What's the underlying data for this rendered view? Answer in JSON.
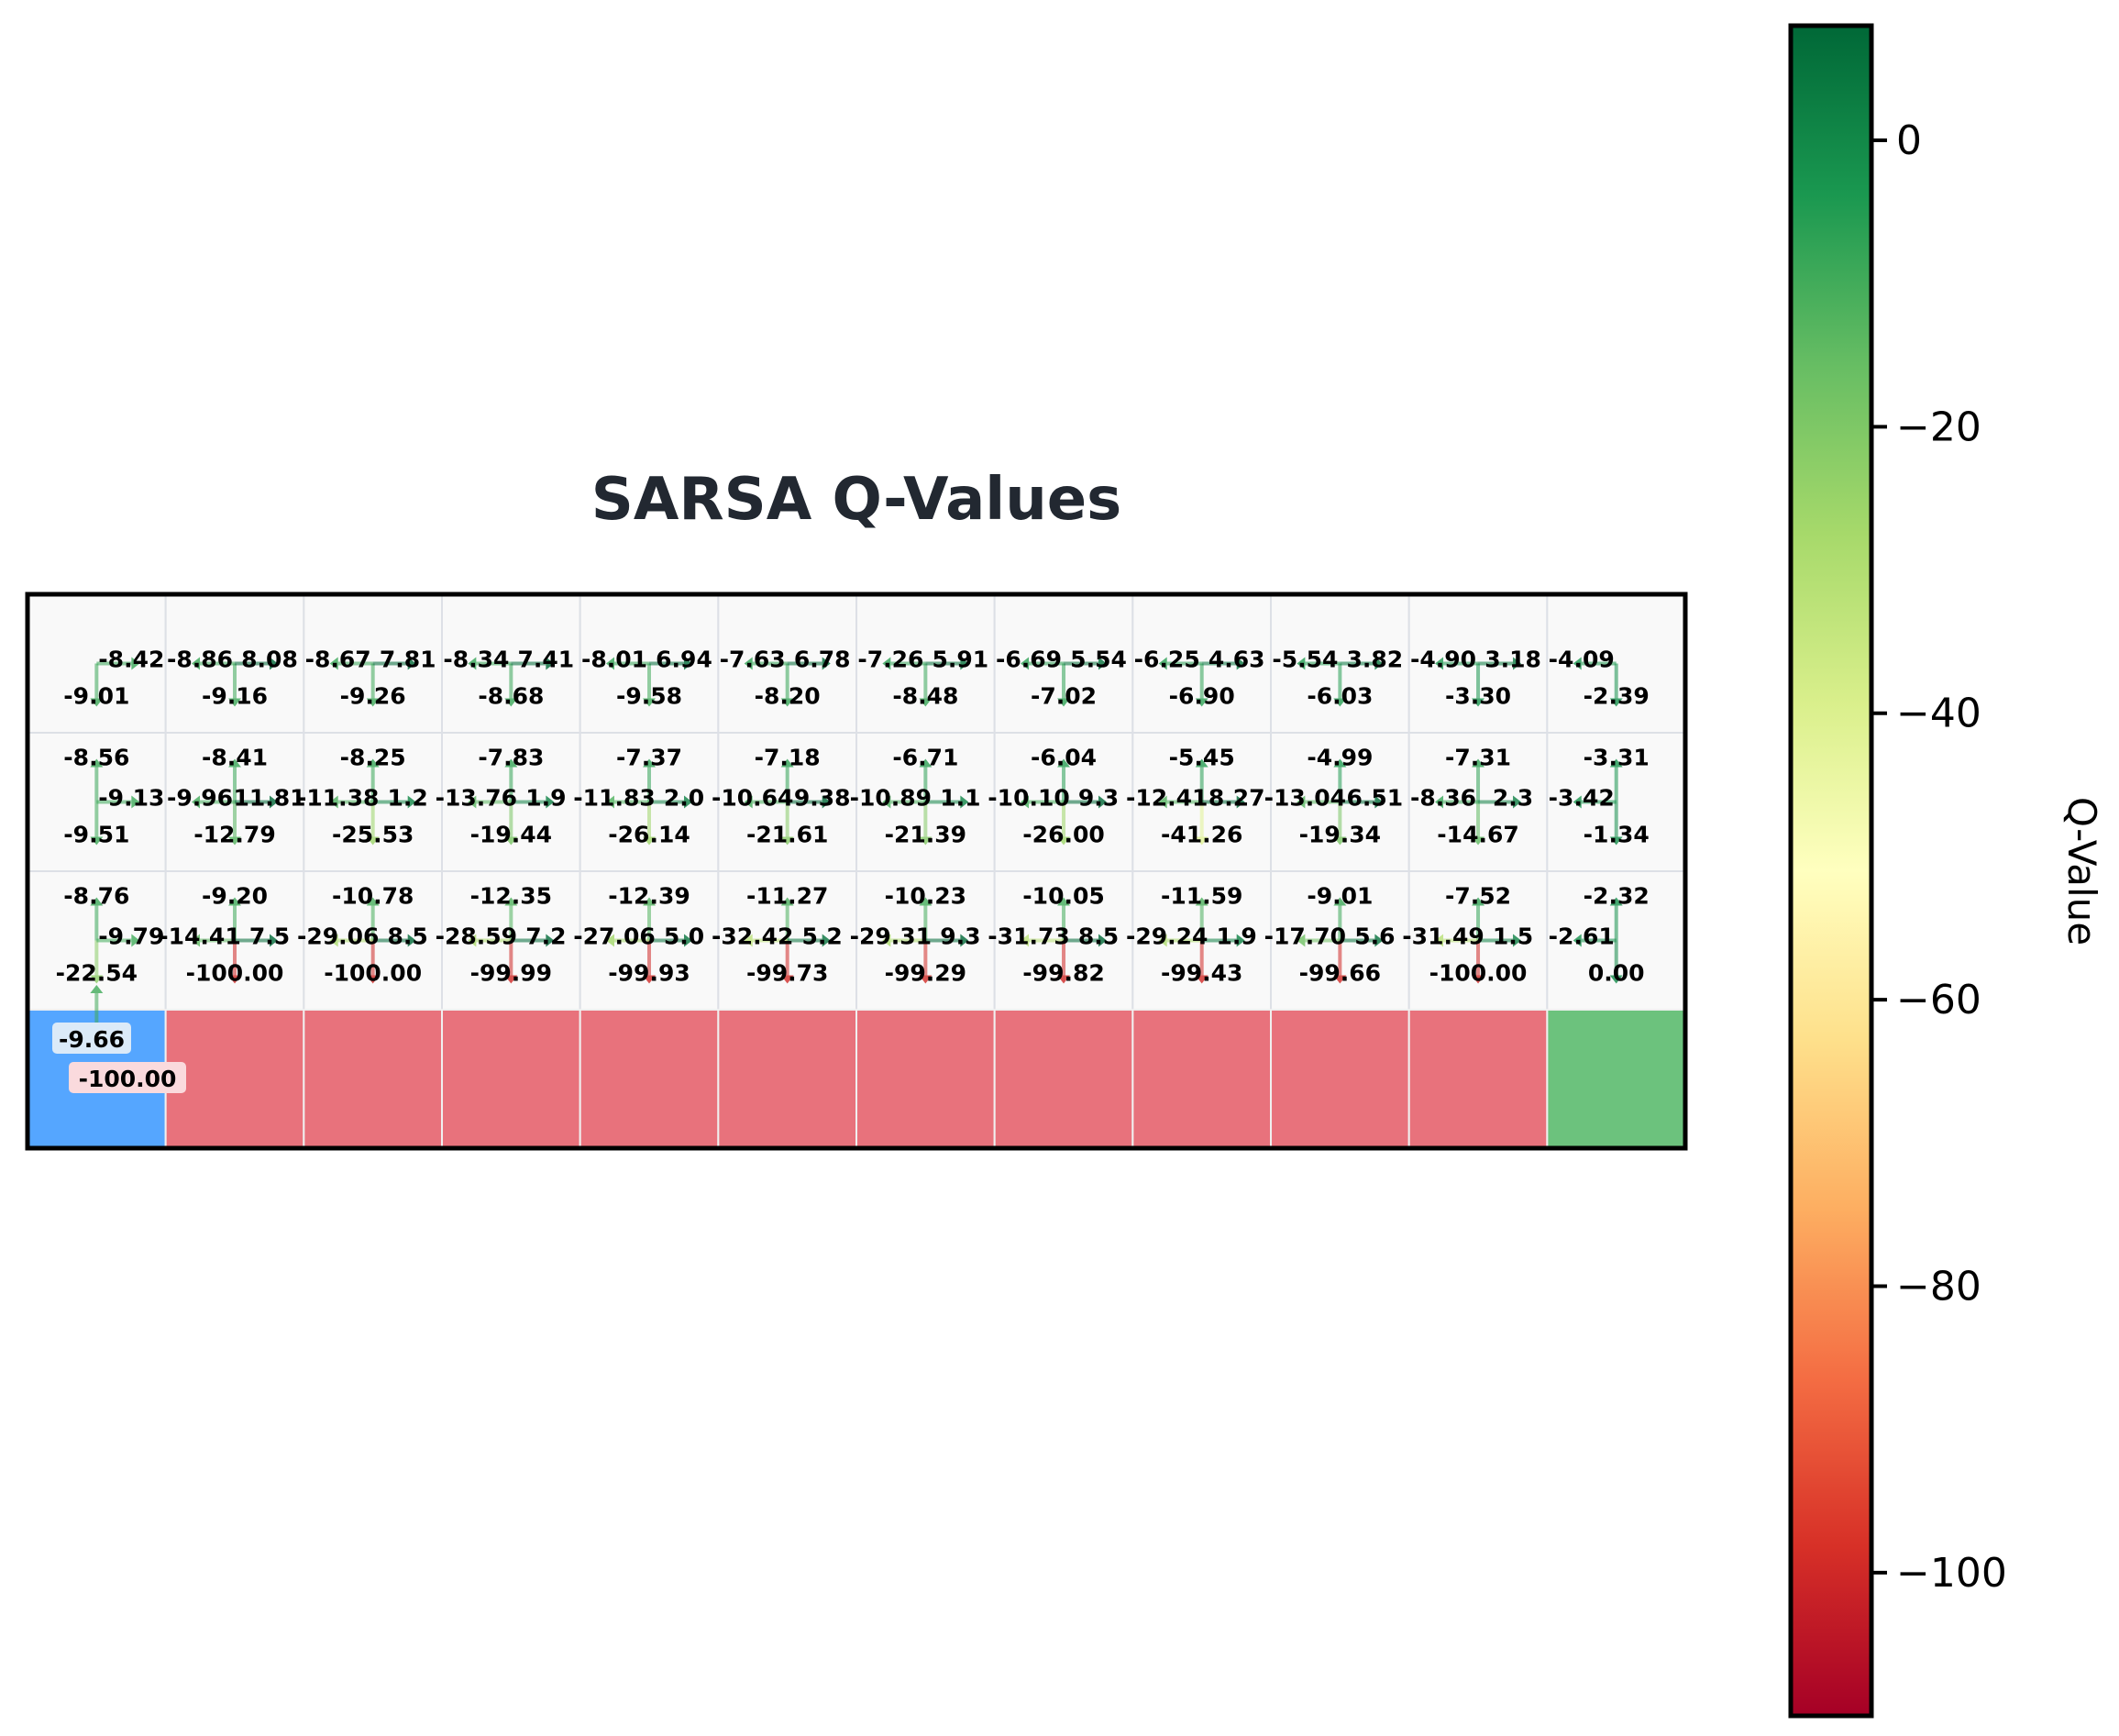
{
  "chart_data": {
    "type": "heatmap",
    "title": "SARSA Q-Values",
    "grid": {
      "rows": 4,
      "cols": 12
    },
    "q_values": [
      {
        "row": 0,
        "col": 0,
        "up": "",
        "down": "-9.01",
        "left": "",
        "right": "-8.42"
      },
      {
        "row": 0,
        "col": 1,
        "up": "",
        "down": "-9.16",
        "left": "-8.86",
        "right": "8.08"
      },
      {
        "row": 0,
        "col": 2,
        "up": "",
        "down": "-9.26",
        "left": "-8.67",
        "right": "7.81"
      },
      {
        "row": 0,
        "col": 3,
        "up": "",
        "down": "-8.68",
        "left": "-8.34",
        "right": "7.41"
      },
      {
        "row": 0,
        "col": 4,
        "up": "",
        "down": "-9.58",
        "left": "-8.01",
        "right": "6.94"
      },
      {
        "row": 0,
        "col": 5,
        "up": "",
        "down": "-8.20",
        "left": "-7.63",
        "right": "6.78"
      },
      {
        "row": 0,
        "col": 6,
        "up": "",
        "down": "-8.48",
        "left": "-7.26",
        "right": "5.91"
      },
      {
        "row": 0,
        "col": 7,
        "up": "",
        "down": "-7.02",
        "left": "-6.69",
        "right": "5.54"
      },
      {
        "row": 0,
        "col": 8,
        "up": "",
        "down": "-6.90",
        "left": "-6.25",
        "right": "4.63"
      },
      {
        "row": 0,
        "col": 9,
        "up": "",
        "down": "-6.03",
        "left": "-5.54",
        "right": "3.82"
      },
      {
        "row": 0,
        "col": 10,
        "up": "",
        "down": "-3.30",
        "left": "-4.90",
        "right": "3.18"
      },
      {
        "row": 0,
        "col": 11,
        "up": "",
        "down": "-2.39",
        "left": "-4.09",
        "right": ""
      },
      {
        "row": 1,
        "col": 0,
        "up": "-8.56",
        "down": "-9.51",
        "left": "",
        "right": "-9.13"
      },
      {
        "row": 1,
        "col": 1,
        "up": "-8.41",
        "down": "-12.79",
        "left": "-9.96",
        "right": "11.81"
      },
      {
        "row": 1,
        "col": 2,
        "up": "-8.25",
        "down": "-25.53",
        "left": "-11.38",
        "right": "1.2"
      },
      {
        "row": 1,
        "col": 3,
        "up": "-7.83",
        "down": "-19.44",
        "left": "-13.76",
        "right": "1.9"
      },
      {
        "row": 1,
        "col": 4,
        "up": "-7.37",
        "down": "-26.14",
        "left": "-11.83",
        "right": "2.0"
      },
      {
        "row": 1,
        "col": 5,
        "up": "-7.18",
        "down": "-21.61",
        "left": "-10.64",
        "right": "9.38"
      },
      {
        "row": 1,
        "col": 6,
        "up": "-6.71",
        "down": "-21.39",
        "left": "-10.89",
        "right": "1.1"
      },
      {
        "row": 1,
        "col": 7,
        "up": "-6.04",
        "down": "-26.00",
        "left": "-10.10",
        "right": "9.3"
      },
      {
        "row": 1,
        "col": 8,
        "up": "-5.45",
        "down": "-41.26",
        "left": "-12.41",
        "right": "8.27"
      },
      {
        "row": 1,
        "col": 9,
        "up": "-4.99",
        "down": "-19.34",
        "left": "-13.04",
        "right": "6.51"
      },
      {
        "row": 1,
        "col": 10,
        "up": "-7.31",
        "down": "-14.67",
        "left": "-8.36",
        "right": "2.3"
      },
      {
        "row": 1,
        "col": 11,
        "up": "-3.31",
        "down": "-1.34",
        "left": "-3.42",
        "right": ""
      },
      {
        "row": 2,
        "col": 0,
        "up": "-8.76",
        "down": "-22.54",
        "left": "",
        "right": "-9.79"
      },
      {
        "row": 2,
        "col": 1,
        "up": "-9.20",
        "down": "-100.00",
        "left": "-14.41",
        "right": "7.5"
      },
      {
        "row": 2,
        "col": 2,
        "up": "-10.78",
        "down": "-100.00",
        "left": "-29.06",
        "right": "8.5"
      },
      {
        "row": 2,
        "col": 3,
        "up": "-12.35",
        "down": "-99.99",
        "left": "-28.59",
        "right": "7.2"
      },
      {
        "row": 2,
        "col": 4,
        "up": "-12.39",
        "down": "-99.93",
        "left": "-27.06",
        "right": "5.0"
      },
      {
        "row": 2,
        "col": 5,
        "up": "-11.27",
        "down": "-99.73",
        "left": "-32.42",
        "right": "5.2"
      },
      {
        "row": 2,
        "col": 6,
        "up": "-10.23",
        "down": "-99.29",
        "left": "-29.31",
        "right": "9.3"
      },
      {
        "row": 2,
        "col": 7,
        "up": "-10.05",
        "down": "-99.82",
        "left": "-31.73",
        "right": "8.5"
      },
      {
        "row": 2,
        "col": 8,
        "up": "-11.59",
        "down": "-99.43",
        "left": "-29.24",
        "right": "1.9"
      },
      {
        "row": 2,
        "col": 9,
        "up": "-9.01",
        "down": "-99.66",
        "left": "-17.70",
        "right": "5.6"
      },
      {
        "row": 2,
        "col": 10,
        "up": "-7.52",
        "down": "-100.00",
        "left": "-31.49",
        "right": "1.5"
      },
      {
        "row": 2,
        "col": 11,
        "up": "-2.32",
        "down": "0.00",
        "left": "-2.61",
        "right": ""
      }
    ],
    "start_cell": {
      "row": 3,
      "col": 0,
      "up": "-9.66",
      "right": "-100.00",
      "color": "#55a6ff"
    },
    "cliff": {
      "row": 3,
      "cols": [
        1,
        10
      ],
      "color": "#e8727c"
    },
    "goal_cell": {
      "row": 3,
      "col": 11,
      "color": "#6cc27d"
    },
    "colorbar": {
      "label": "Q-Value",
      "ticks": [
        "0",
        "−20",
        "−40",
        "−60",
        "−80",
        "−100"
      ],
      "tick_values": [
        0,
        -20,
        -40,
        -60,
        -80,
        -100
      ],
      "range": [
        -110,
        8
      ],
      "colormap": "RdYlGn"
    }
  }
}
